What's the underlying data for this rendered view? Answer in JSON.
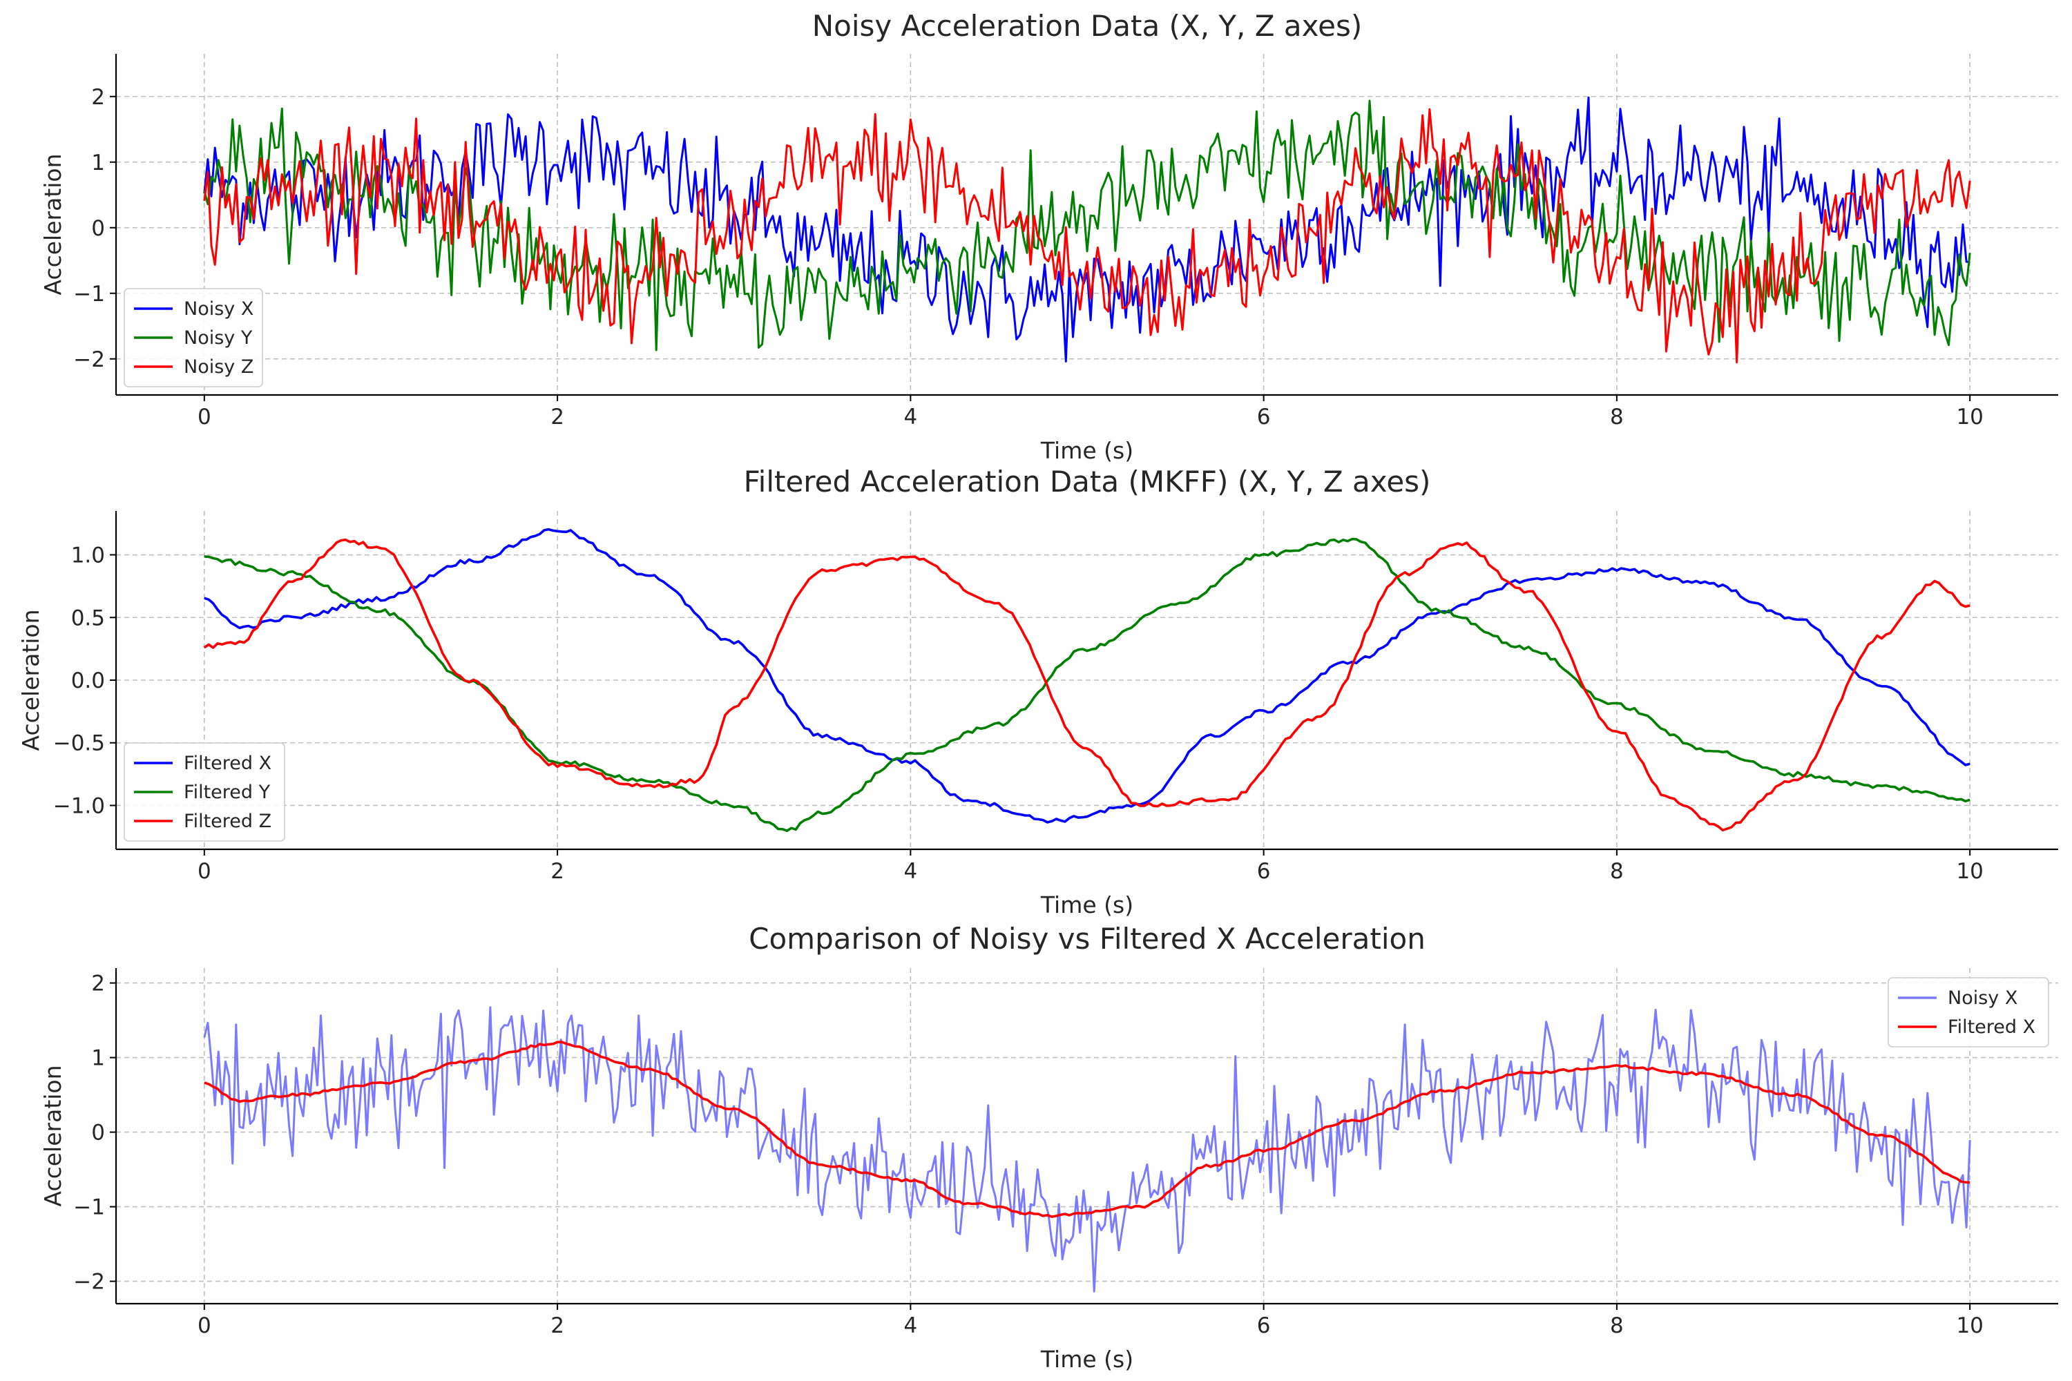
{
  "chart_data": [
    {
      "type": "line",
      "title": "Noisy Acceleration Data (X, Y, Z axes)",
      "xlabel": "Time (s)",
      "ylabel": "Acceleration",
      "xlim": [
        -0.5,
        10.5
      ],
      "ylim": [
        -2.55,
        2.65
      ],
      "xticks": [
        0,
        2,
        4,
        6,
        8,
        10
      ],
      "yticks": [
        -2,
        -1,
        0,
        1,
        2
      ],
      "grid": true,
      "legend": "lower-left",
      "noise_amplitude": 0.55,
      "series": [
        {
          "name": "Noisy X",
          "color": "#0000ff",
          "kind": "noisy",
          "x": [
            0,
            0.5,
            1,
            1.5,
            2,
            2.5,
            3,
            3.5,
            4,
            4.5,
            5,
            5.5,
            6,
            6.5,
            7,
            7.5,
            8,
            8.5,
            9,
            9.5,
            10
          ],
          "y": [
            0.65,
            0.5,
            0.65,
            0.95,
            1.2,
            0.85,
            0.3,
            -0.4,
            -0.65,
            -1.05,
            -1.1,
            -0.8,
            -0.25,
            0.15,
            0.55,
            0.8,
            0.88,
            0.8,
            0.5,
            0.05,
            -0.65
          ]
        },
        {
          "name": "Noisy Y",
          "color": "#008000",
          "kind": "noisy",
          "x": [
            0,
            0.5,
            1,
            1.5,
            2,
            2.5,
            3,
            3.5,
            4,
            4.5,
            5,
            5.5,
            6,
            6.5,
            7,
            7.5,
            8,
            8.5,
            9,
            9.5,
            10
          ],
          "y": [
            0.97,
            0.85,
            0.55,
            0.0,
            -0.65,
            -0.8,
            -1.0,
            -1.05,
            -0.6,
            -0.35,
            0.25,
            0.6,
            1.0,
            1.12,
            0.55,
            0.25,
            -0.2,
            -0.55,
            -0.75,
            -0.85,
            -0.95
          ]
        },
        {
          "name": "Noisy Z",
          "color": "#ff0000",
          "kind": "noisy",
          "x": [
            0,
            0.5,
            1,
            1.5,
            2,
            2.5,
            3,
            3.5,
            4,
            4.5,
            5,
            5.5,
            6,
            6.5,
            7,
            7.5,
            8,
            8.5,
            9,
            9.5,
            10
          ],
          "y": [
            0.27,
            0.55,
            1.05,
            0.0,
            -0.68,
            -0.85,
            0.0,
            0.9,
            0.98,
            0.2,
            -0.85,
            -0.95,
            -0.5,
            0.6,
            1.05,
            0.55,
            -0.45,
            -1.15,
            -0.55,
            0.4,
            0.58
          ]
        }
      ]
    },
    {
      "type": "line",
      "title": "Filtered Acceleration Data (MKFF) (X, Y, Z axes)",
      "xlabel": "Time (s)",
      "ylabel": "Acceleration",
      "xlim": [
        -0.5,
        10.5
      ],
      "ylim": [
        -1.35,
        1.35
      ],
      "xticks": [
        0,
        2,
        4,
        6,
        8,
        10
      ],
      "yticks": [
        -1.0,
        -0.5,
        0.0,
        0.5,
        1.0
      ],
      "grid": true,
      "legend": "lower-left",
      "series": [
        {
          "name": "Filtered X",
          "color": "#0000ff",
          "x": [
            0,
            0.2,
            0.5,
            1,
            1.5,
            2,
            2.5,
            3,
            3.5,
            4,
            4.3,
            4.8,
            5.3,
            5.7,
            6,
            6.5,
            7,
            7.5,
            8,
            8.5,
            9,
            9.5,
            10
          ],
          "y": [
            0.65,
            0.42,
            0.5,
            0.65,
            0.95,
            1.2,
            0.85,
            0.3,
            -0.45,
            -0.65,
            -0.95,
            -1.12,
            -1.0,
            -0.45,
            -0.25,
            0.15,
            0.55,
            0.8,
            0.88,
            0.78,
            0.5,
            -0.05,
            -0.67
          ]
        },
        {
          "name": "Filtered Y",
          "color": "#008000",
          "x": [
            0,
            0.5,
            1,
            1.5,
            2,
            2.5,
            3,
            3.3,
            3.5,
            4,
            4.5,
            5,
            5.5,
            6,
            6.5,
            7,
            7.5,
            8,
            8.5,
            9,
            9.5,
            10
          ],
          "y": [
            0.97,
            0.85,
            0.55,
            0.0,
            -0.65,
            -0.8,
            -1.0,
            -1.2,
            -1.05,
            -0.6,
            -0.35,
            0.25,
            0.6,
            1.0,
            1.12,
            0.55,
            0.25,
            -0.2,
            -0.55,
            -0.75,
            -0.85,
            -0.95
          ]
        },
        {
          "name": "Filtered Z",
          "color": "#ff0000",
          "x": [
            0,
            0.2,
            0.5,
            0.8,
            1,
            1.5,
            2,
            2.5,
            2.8,
            3,
            3.5,
            4,
            4.5,
            5,
            5.3,
            5.8,
            6.3,
            6.8,
            7.1,
            7.5,
            8,
            8.3,
            8.6,
            9,
            9.5,
            9.8,
            10
          ],
          "y": [
            0.27,
            0.3,
            0.8,
            1.12,
            1.05,
            0.0,
            -0.68,
            -0.85,
            -0.8,
            -0.2,
            0.88,
            0.98,
            0.6,
            -0.55,
            -1.0,
            -0.95,
            -0.3,
            0.85,
            1.1,
            0.7,
            -0.4,
            -0.95,
            -1.18,
            -0.8,
            0.35,
            0.78,
            0.58
          ]
        }
      ]
    },
    {
      "type": "line",
      "title": "Comparison of Noisy vs Filtered X Acceleration",
      "xlabel": "Time (s)",
      "ylabel": "Acceleration",
      "xlim": [
        -0.5,
        10.5
      ],
      "ylim": [
        -2.3,
        2.2
      ],
      "xticks": [
        0,
        2,
        4,
        6,
        8,
        10
      ],
      "yticks": [
        -2,
        -1,
        0,
        1,
        2
      ],
      "grid": true,
      "legend": "top-right",
      "noise_amplitude": 0.55,
      "series": [
        {
          "name": "Noisy X",
          "color": "#7b7bff",
          "kind": "noisy",
          "x": [
            0,
            0.2,
            0.5,
            1,
            1.5,
            2,
            2.5,
            3,
            3.5,
            4,
            4.3,
            4.8,
            5.3,
            5.7,
            6,
            6.5,
            7,
            7.5,
            8,
            8.5,
            9,
            9.5,
            10
          ],
          "y": [
            0.65,
            0.42,
            0.5,
            0.65,
            0.95,
            1.2,
            0.85,
            0.3,
            -0.45,
            -0.65,
            -0.95,
            -1.12,
            -1.0,
            -0.45,
            -0.25,
            0.15,
            0.55,
            0.8,
            0.88,
            0.78,
            0.5,
            -0.05,
            -0.67
          ]
        },
        {
          "name": "Filtered X",
          "color": "#ff0000",
          "x": [
            0,
            0.2,
            0.5,
            1,
            1.5,
            2,
            2.5,
            3,
            3.5,
            4,
            4.3,
            4.8,
            5.3,
            5.7,
            6,
            6.5,
            7,
            7.5,
            8,
            8.5,
            9,
            9.5,
            10
          ],
          "y": [
            0.65,
            0.42,
            0.5,
            0.65,
            0.95,
            1.2,
            0.85,
            0.3,
            -0.45,
            -0.65,
            -0.95,
            -1.12,
            -1.0,
            -0.45,
            -0.25,
            0.15,
            0.55,
            0.8,
            0.88,
            0.78,
            0.5,
            -0.05,
            -0.67
          ]
        }
      ]
    }
  ]
}
